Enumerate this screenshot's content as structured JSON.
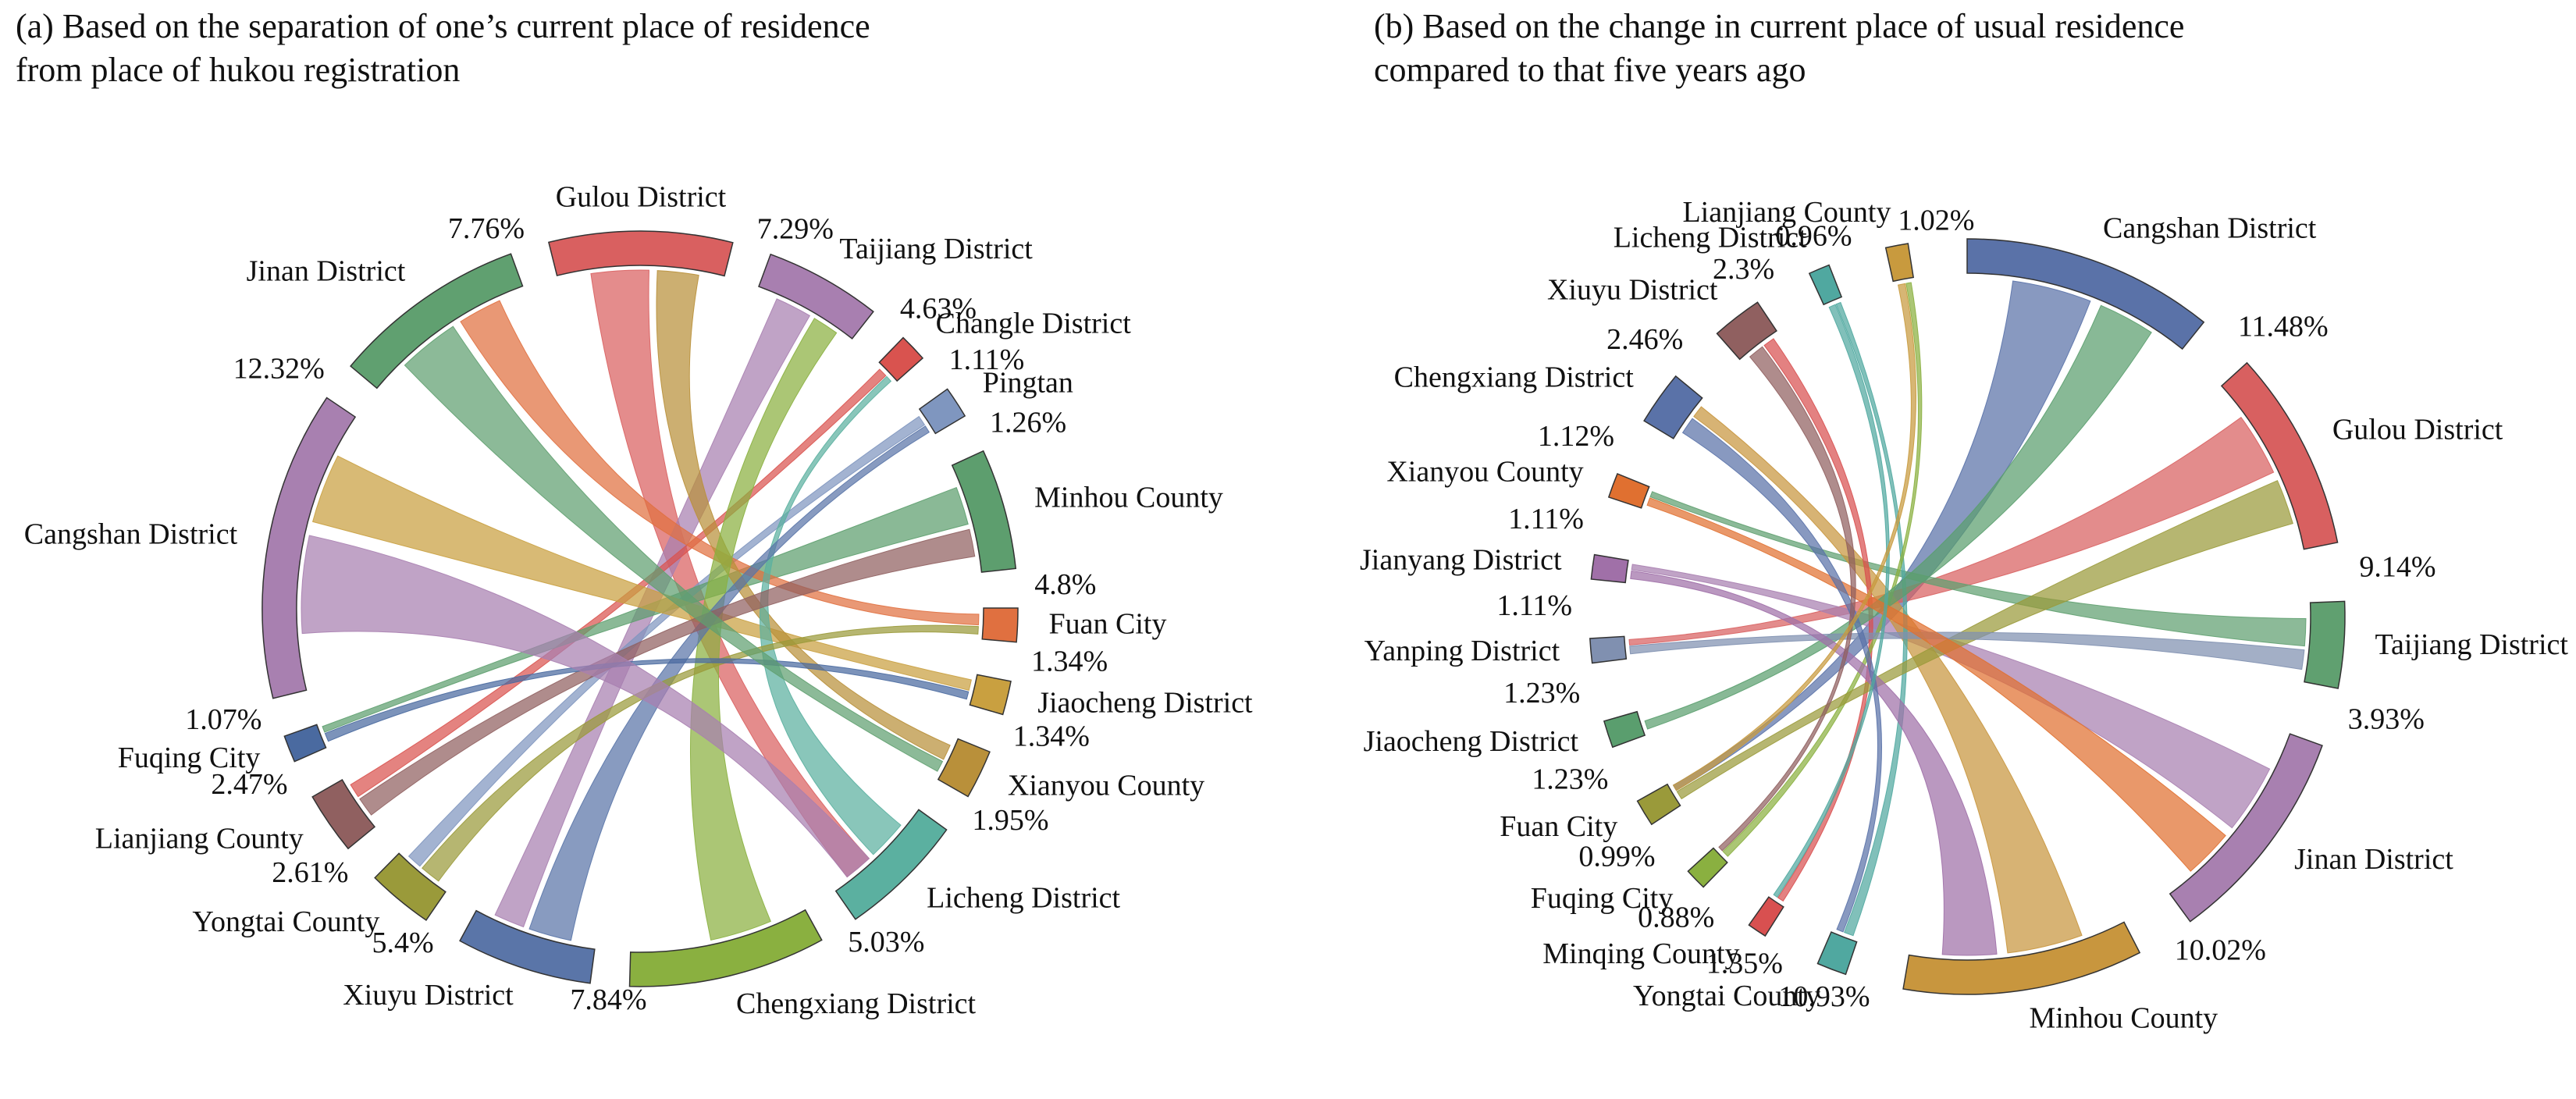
{
  "chart_data": [
    {
      "type": "chord",
      "title": [
        "(a) Based on the separation of one’s current place of residence",
        "from place of hukou registration"
      ],
      "categories": [
        "Gulou District",
        "Taijiang District",
        "Changle District",
        "Pingtan",
        "Minhou County",
        "Fuan City",
        "Jiaocheng District",
        "Xianyou County",
        "Licheng District",
        "Chengxiang District",
        "Xiuyu District",
        "Yongtai County",
        "Lianjiang County",
        "Fuqing City",
        "Cangshan District",
        "Jinan District"
      ],
      "values": [
        7.29,
        4.63,
        1.11,
        1.26,
        4.8,
        1.34,
        1.34,
        1.95,
        5.03,
        7.84,
        5.4,
        2.61,
        2.47,
        1.07,
        12.32,
        7.76
      ],
      "value_labels": [
        "7.29%",
        "4.63%",
        "1.11%",
        "1.26%",
        "4.8%",
        "1.34%",
        "1.34%",
        "1.95%",
        "5.03%",
        "7.84%",
        "5.4%",
        "2.61%",
        "2.47%",
        "1.07%",
        "12.32%",
        "7.76%"
      ],
      "colors": [
        "#d96060",
        "#a87fb0",
        "#d9534f",
        "#7f96bf",
        "#5d9e6e",
        "#e07040",
        "#c9a040",
        "#b9903a",
        "#5bb0a0",
        "#8ab040",
        "#5a75a8",
        "#9a9a3a",
        "#906060",
        "#4a6aa0",
        "#a880b0",
        "#60a070"
      ]
    },
    {
      "type": "chord",
      "title": [
        "(b) Based on the change in current place of usual residence",
        "compared to that five years ago"
      ],
      "categories": [
        "Cangshan District",
        "Gulou District",
        "Taijiang District",
        "Jinan District",
        "Minhou County",
        "Yongtai County",
        "Minqing County",
        "Fuqing City",
        "Fuan City",
        "Jiaocheng District",
        "Yanping District",
        "Jianyang District",
        "Xianyou County",
        "Chengxiang District",
        "Xiuyu District",
        "Licheng District",
        "Lianjiang County"
      ],
      "values": [
        11.48,
        9.14,
        3.93,
        10.02,
        10.93,
        1.35,
        0.88,
        0.99,
        1.23,
        1.23,
        1.11,
        1.11,
        1.12,
        2.46,
        2.3,
        0.96,
        1.02
      ],
      "value_labels": [
        "11.48%",
        "9.14%",
        "3.93%",
        "10.02%",
        "10.93%",
        "1.35%",
        "0.88%",
        "0.99%",
        "1.23%",
        "1.23%",
        "1.11%",
        "1.11%",
        "1.12%",
        "2.46%",
        "2.3%",
        "0.96%",
        "1.02%"
      ],
      "colors": [
        "#5a72a8",
        "#d86060",
        "#60a070",
        "#a880b0",
        "#c8963e",
        "#50a8a0",
        "#d85050",
        "#8ab040",
        "#9a9a3a",
        "#5a9e6e",
        "#8090b0",
        "#a070a8",
        "#e07030",
        "#5a72a8",
        "#906060",
        "#50a8a0",
        "#c89a3e"
      ]
    }
  ]
}
